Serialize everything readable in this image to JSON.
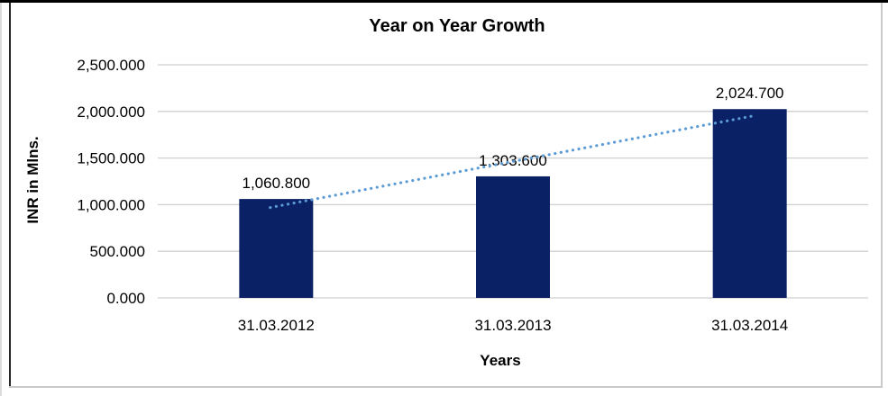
{
  "chart_data": {
    "type": "bar",
    "title": "Year on Year Growth",
    "xlabel": "Years",
    "ylabel": "INR in Mlns.",
    "categories": [
      "31.03.2012",
      "31.03.2013",
      "31.03.2014"
    ],
    "values": [
      1060.8,
      1303.6,
      2024.7
    ],
    "value_labels": [
      "1,060.800",
      "1,303.600",
      "2,024.700"
    ],
    "yticks": [
      {
        "value": 0,
        "label": "0.000"
      },
      {
        "value": 500,
        "label": "500.000"
      },
      {
        "value": 1000,
        "label": "1,000.000"
      },
      {
        "value": 1500,
        "label": "1,500.000"
      },
      {
        "value": 2000,
        "label": "2,000.000"
      },
      {
        "value": 2500,
        "label": "2,500.000"
      }
    ],
    "ylim": [
      0,
      2500
    ],
    "grid": true,
    "legend": "none",
    "bar_color": "#0a2265",
    "gridline_color": "#cfcfcf",
    "trendline": {
      "type": "linear",
      "style": "dotted",
      "color": "#5b9bd5"
    }
  }
}
